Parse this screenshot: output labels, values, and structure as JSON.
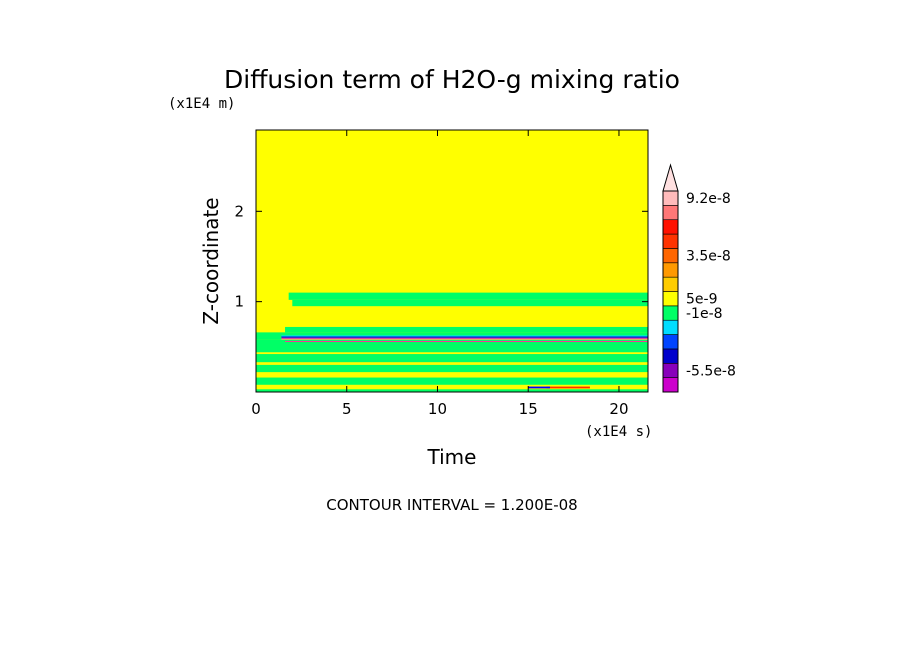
{
  "chart_data": {
    "type": "heatmap",
    "title": "Diffusion term of H2O-g mixing ratio",
    "xlabel": "Time",
    "ylabel": "Z-coordinate",
    "x_unit": "(x1E4 s)",
    "y_unit": "(x1E4 m)",
    "xlim": [
      0,
      21.6
    ],
    "ylim": [
      0,
      2.9
    ],
    "x_ticks": [
      "0",
      "5",
      "10",
      "15",
      "20"
    ],
    "y_ticks": [
      "1",
      "2"
    ],
    "x_tick_values": [
      0,
      5,
      10,
      15,
      20
    ],
    "y_tick_values": [
      1,
      2
    ],
    "background_level": "0",
    "bands": [
      {
        "x0": 0.0,
        "x1": 21.6,
        "y0": 0.0,
        "y1": 0.03,
        "color": "#00ff66"
      },
      {
        "x0": 0.0,
        "x1": 21.6,
        "y0": 0.08,
        "y1": 0.16,
        "color": "#00ff66"
      },
      {
        "x0": 0.0,
        "x1": 21.6,
        "y0": 0.22,
        "y1": 0.3,
        "color": "#00ff66"
      },
      {
        "x0": 0.0,
        "x1": 21.6,
        "y0": 0.33,
        "y1": 0.42,
        "color": "#00ff66"
      },
      {
        "x0": 0.0,
        "x1": 21.6,
        "y0": 0.44,
        "y1": 0.58,
        "color": "#00ff66"
      },
      {
        "x0": 0.0,
        "x1": 21.6,
        "y0": 0.58,
        "y1": 0.66,
        "color": "#00ff66"
      },
      {
        "x0": 1.6,
        "x1": 21.6,
        "y0": 0.66,
        "y1": 0.72,
        "color": "#00ff66"
      },
      {
        "x0": 2.0,
        "x1": 21.6,
        "y0": 0.95,
        "y1": 1.02,
        "color": "#00ff66"
      },
      {
        "x0": 1.8,
        "x1": 21.6,
        "y0": 1.02,
        "y1": 1.1,
        "color": "#00ff66"
      },
      {
        "x0": 1.6,
        "x1": 21.6,
        "y0": 0.555,
        "y1": 0.565,
        "color": "#ff3399"
      },
      {
        "x0": 1.4,
        "x1": 21.6,
        "y0": 0.578,
        "y1": 0.592,
        "color": "#ffaa66"
      },
      {
        "x0": 1.4,
        "x1": 21.6,
        "y0": 0.592,
        "y1": 0.602,
        "color": "#cc00cc"
      },
      {
        "x0": 1.4,
        "x1": 21.6,
        "y0": 0.602,
        "y1": 0.618,
        "color": "#0022cc"
      },
      {
        "x0": 1.4,
        "x1": 21.6,
        "y0": 0.618,
        "y1": 0.626,
        "color": "#00ddff"
      },
      {
        "x0": 16.0,
        "x1": 18.4,
        "y0": 0.04,
        "y1": 0.06,
        "color": "#ff3300"
      },
      {
        "x0": 15.0,
        "x1": 16.2,
        "y0": 0.04,
        "y1": 0.06,
        "color": "#0000ff"
      }
    ],
    "colorbar": {
      "colors": [
        "#cc00cc",
        "#8800bb",
        "#0000cc",
        "#0044ff",
        "#00ddff",
        "#00ff66",
        "#ffff00",
        "#ffcc00",
        "#ff9900",
        "#ff6600",
        "#ff3300",
        "#ff1100",
        "#ff7777",
        "#ffbbbb"
      ],
      "labels": [
        {
          "text": "9.2e-8",
          "index": 13
        },
        {
          "text": "3.5e-8",
          "index": 9
        },
        {
          "text": "5e-9",
          "index": 6
        },
        {
          "text": "-1e-8",
          "index": 5
        },
        {
          "text": "-5.5e-8",
          "index": 1
        }
      ],
      "extend": "max"
    },
    "annotation": "CONTOUR INTERVAL = 1.200E-08"
  }
}
